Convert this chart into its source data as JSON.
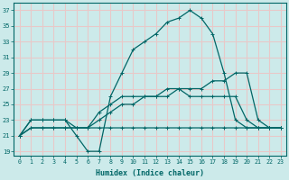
{
  "xlabel": "Humidex (Indice chaleur)",
  "bg_color": "#cceaea",
  "grid_color": "#e8c8c8",
  "line_color": "#006666",
  "xlim": [
    -0.5,
    23.5
  ],
  "ylim": [
    18.5,
    38
  ],
  "xticks": [
    0,
    1,
    2,
    3,
    4,
    5,
    6,
    7,
    8,
    9,
    10,
    11,
    12,
    13,
    14,
    15,
    16,
    17,
    18,
    19,
    20,
    21,
    22,
    23
  ],
  "yticks": [
    19,
    21,
    23,
    25,
    27,
    29,
    31,
    33,
    35,
    37
  ],
  "series": [
    {
      "x": [
        0,
        1,
        2,
        3,
        4,
        5,
        6,
        7,
        8,
        9,
        10,
        11,
        12,
        13,
        14,
        15,
        16,
        17,
        18,
        19,
        20,
        21,
        22,
        23
      ],
      "y": [
        21,
        23,
        23,
        23,
        23,
        21,
        19,
        19,
        26,
        29,
        32,
        33,
        34,
        35.5,
        36,
        37,
        36,
        34,
        29,
        23,
        22,
        22,
        22,
        22
      ]
    },
    {
      "x": [
        0,
        1,
        2,
        3,
        4,
        5,
        6,
        7,
        8,
        9,
        10,
        11,
        12,
        13,
        14,
        15,
        16,
        17,
        18,
        19,
        20,
        21,
        22,
        23
      ],
      "y": [
        21,
        22,
        22,
        22,
        22,
        22,
        22,
        23,
        24,
        25,
        25,
        26,
        26,
        26,
        27,
        27,
        27,
        28,
        28,
        29,
        29,
        23,
        22,
        22
      ]
    },
    {
      "x": [
        0,
        1,
        2,
        3,
        4,
        5,
        6,
        7,
        8,
        9,
        10,
        11,
        12,
        13,
        14,
        15,
        16,
        17,
        18,
        19,
        20,
        21,
        22,
        23
      ],
      "y": [
        21,
        22,
        22,
        22,
        22,
        22,
        22,
        22,
        22,
        22,
        22,
        22,
        22,
        22,
        22,
        22,
        22,
        22,
        22,
        22,
        22,
        22,
        22,
        22
      ]
    },
    {
      "x": [
        0,
        1,
        2,
        3,
        4,
        5,
        6,
        7,
        8,
        9,
        10,
        11,
        12,
        13,
        14,
        15,
        16,
        17,
        18,
        19,
        20,
        21,
        22,
        23
      ],
      "y": [
        21,
        23,
        23,
        23,
        23,
        22,
        22,
        24,
        25,
        26,
        26,
        26,
        26,
        27,
        27,
        26,
        26,
        26,
        26,
        26,
        23,
        22,
        22,
        22
      ]
    }
  ]
}
